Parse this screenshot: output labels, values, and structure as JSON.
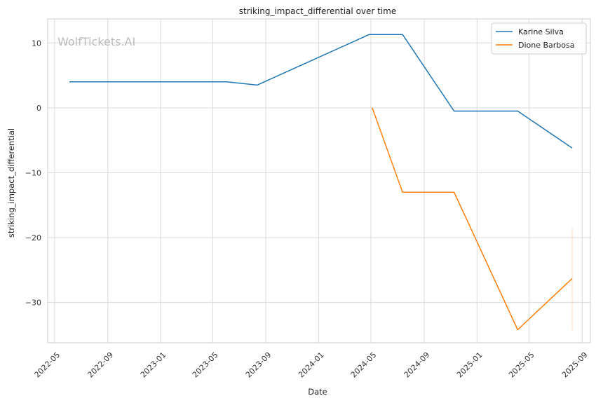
{
  "watermark": "WolfTickets.AI",
  "chart_data": {
    "type": "line",
    "title": "striking_impact_differential over time",
    "xlabel": "Date",
    "ylabel": "striking_impact_differential",
    "xlim": [
      "2022-04-15",
      "2025-09-20"
    ],
    "ylim": [
      -36.2,
      13.7
    ],
    "grid": true,
    "legend": "top-right",
    "x_ticks": [
      "2022-05",
      "2022-09",
      "2023-01",
      "2023-05",
      "2023-09",
      "2024-01",
      "2024-05",
      "2024-09",
      "2025-01",
      "2025-05",
      "2025-09"
    ],
    "y_ticks": [
      10,
      0,
      -10,
      -20,
      -30
    ],
    "y_tick_labels": [
      "10",
      "0",
      "−10",
      "−20",
      "−30"
    ],
    "series": [
      {
        "name": "Karine Silva",
        "color": "#1f77b4",
        "points": [
          {
            "x": "2022-06-04",
            "y": 4.0
          },
          {
            "x": "2023-06-03",
            "y": 4.0
          },
          {
            "x": "2023-08-12",
            "y": 3.5
          },
          {
            "x": "2024-04-27",
            "y": 11.3
          },
          {
            "x": "2024-07-13",
            "y": 11.3
          },
          {
            "x": "2024-11-09",
            "y": -0.5
          },
          {
            "x": "2025-04-05",
            "y": -0.5
          },
          {
            "x": "2025-08-09",
            "y": -6.2
          }
        ]
      },
      {
        "name": "Dione Barbosa",
        "color": "#ff7f0e",
        "points": [
          {
            "x": "2024-05-04",
            "y": 0.0
          },
          {
            "x": "2024-07-13",
            "y": -13.0
          },
          {
            "x": "2024-11-09",
            "y": -13.0
          },
          {
            "x": "2025-04-05",
            "y": -34.2
          },
          {
            "x": "2025-08-09",
            "y": -26.3
          }
        ]
      }
    ],
    "error_band": {
      "x": "2025-08-09",
      "ymin": -34.3,
      "ymax": -18.5,
      "color": "#ff7f0e"
    }
  }
}
